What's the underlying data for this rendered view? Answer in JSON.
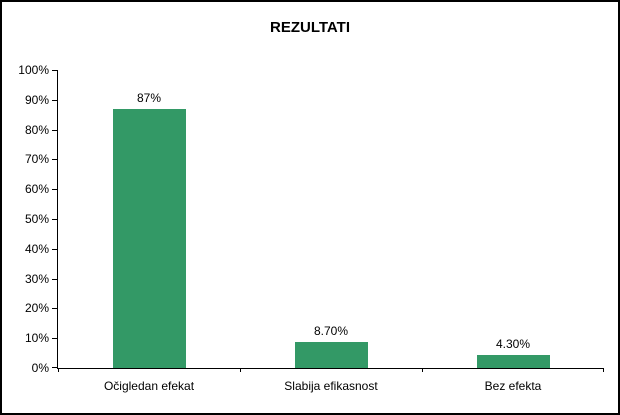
{
  "chart_data": {
    "type": "bar",
    "title": "REZULTATI",
    "categories": [
      "Očigledan efekat",
      "Slabija efikasnost",
      "Bez efekta"
    ],
    "values": [
      87,
      8.7,
      4.3
    ],
    "value_labels": [
      "87%",
      "8.70%",
      "4.30%"
    ],
    "y_tick_labels": [
      "100%",
      "90%",
      "80%",
      "70%",
      "60%",
      "50%",
      "40%",
      "30%",
      "20%",
      "10%",
      "0%"
    ],
    "y_tick_values": [
      100,
      90,
      80,
      70,
      60,
      50,
      40,
      30,
      20,
      10,
      0
    ],
    "ylim": [
      0,
      100
    ],
    "xlabel": "",
    "ylabel": "",
    "grid": false,
    "legend": false,
    "bar_color": "#339966",
    "axis_color": "#000000",
    "background_color": "#ffffff",
    "text_color": "#000000"
  }
}
